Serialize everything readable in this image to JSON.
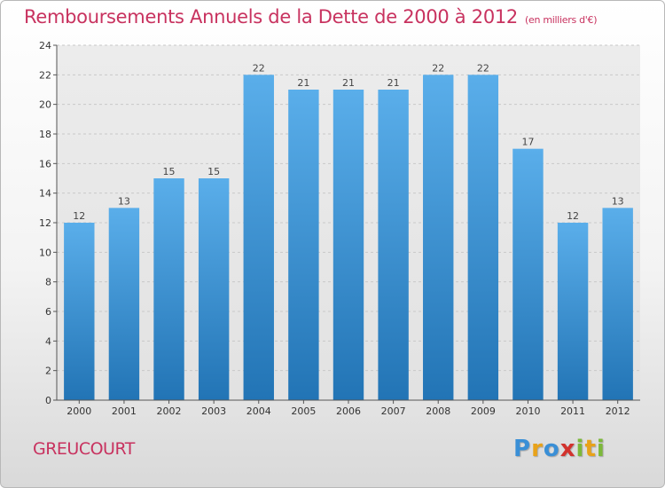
{
  "chart_data": {
    "type": "bar",
    "title": "Remboursements Annuels de la Dette de 2000 à 2012",
    "subtitle": "(en milliers d'€)",
    "categories": [
      "2000",
      "2001",
      "2002",
      "2003",
      "2004",
      "2005",
      "2006",
      "2007",
      "2008",
      "2009",
      "2010",
      "2011",
      "2012"
    ],
    "values": [
      12,
      13,
      15,
      15,
      22,
      21,
      21,
      21,
      22,
      22,
      17,
      12,
      13
    ],
    "ylim": [
      0,
      24
    ],
    "yticks": [
      0,
      2,
      4,
      6,
      8,
      10,
      12,
      14,
      16,
      18,
      20,
      22,
      24
    ],
    "grid": true,
    "xlabel": "",
    "ylabel": "",
    "colors": {
      "bar_top": "#5aaeea",
      "bar_bottom": "#2274b5",
      "title": "#c8325f"
    }
  },
  "footer": {
    "place": "GREUCOURT",
    "logo_letters": [
      "P",
      "r",
      "o",
      "x",
      "i",
      "t",
      "i"
    ],
    "logo_colors": [
      "#3a8fd6",
      "#e8a219",
      "#3a8fd6",
      "#d2322d",
      "#7cb83a",
      "#e8a219",
      "#7cb83a"
    ]
  }
}
